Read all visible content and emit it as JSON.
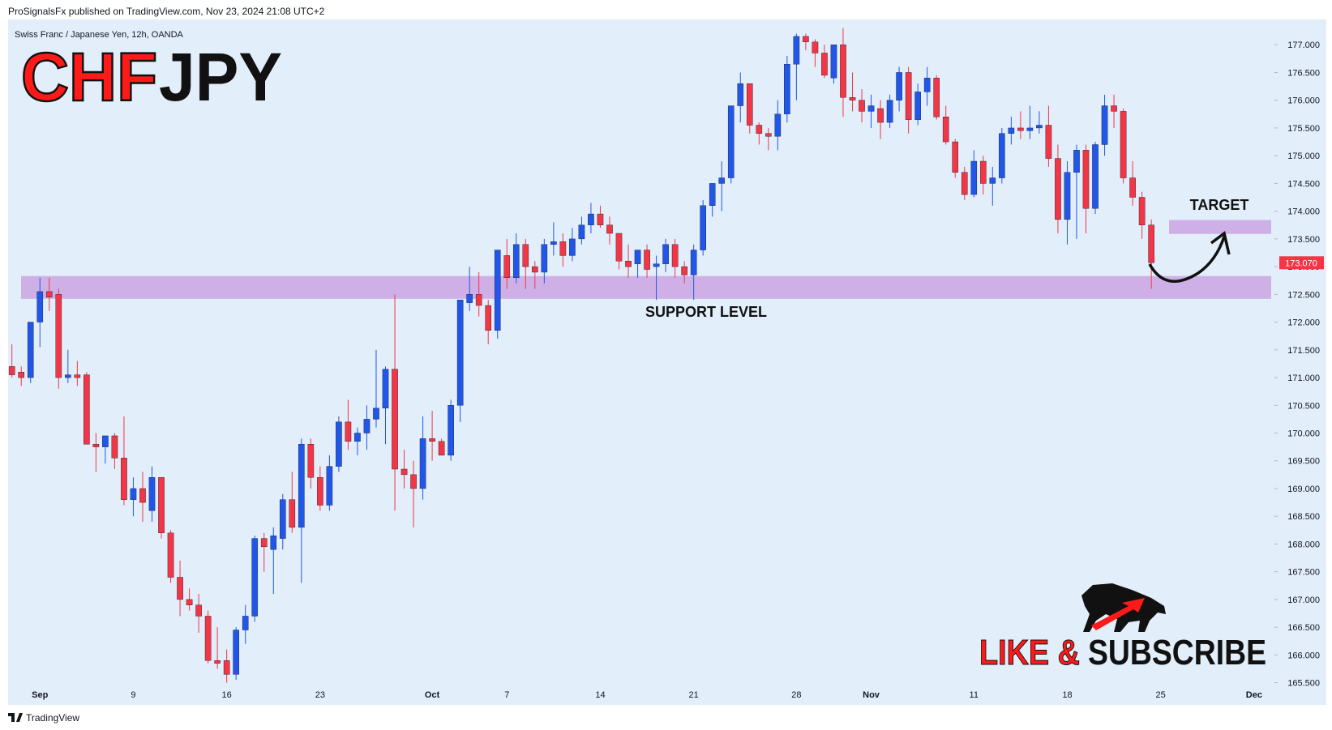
{
  "header": {
    "publisher": "ProSignalsFx published on TradingView.com, Nov 23, 2024 21:08 UTC+2",
    "footer": "TradingView"
  },
  "branding": {
    "title_left": "CHF",
    "title_right": "JPY",
    "cta_left": "LIKE &",
    "cta_right": "SUBSCRIBE"
  },
  "chart_data": {
    "type": "candlestick",
    "subtitle": "Swiss Franc / Japanese Yen, 12h, OANDA",
    "up_color": "#2157e8",
    "down_color": "#f23645",
    "zone_color": "#cda8e3",
    "ylim": [
      165.1,
      177.5
    ],
    "yticks": [
      {
        "value": 165.5,
        "label": "165.500"
      },
      {
        "value": 166,
        "label": "166.000"
      },
      {
        "value": 166.5,
        "label": "166.500"
      },
      {
        "value": 167,
        "label": "167.000"
      },
      {
        "value": 167.5,
        "label": "167.500"
      },
      {
        "value": 168,
        "label": "168.000"
      },
      {
        "value": 168.5,
        "label": "168.500"
      },
      {
        "value": 169,
        "label": "169.000"
      },
      {
        "value": 169.5,
        "label": "169.500"
      },
      {
        "value": 170,
        "label": "170.000"
      },
      {
        "value": 170.5,
        "label": "170.500"
      },
      {
        "value": 171,
        "label": "171.000"
      },
      {
        "value": 171.5,
        "label": "171.500"
      },
      {
        "value": 172,
        "label": "172.000"
      },
      {
        "value": 172.5,
        "label": "172.500"
      },
      {
        "value": 173,
        "label": "173.000"
      },
      {
        "value": 173.5,
        "label": "173.500"
      },
      {
        "value": 174,
        "label": "174.000"
      },
      {
        "value": 174.5,
        "label": "174.500"
      },
      {
        "value": 175,
        "label": "175.000"
      },
      {
        "value": 175.5,
        "label": "175.500"
      },
      {
        "value": 176,
        "label": "176.000"
      },
      {
        "value": 176.5,
        "label": "176.500"
      },
      {
        "value": 177,
        "label": "177.000"
      }
    ],
    "categories": [
      null,
      null,
      null,
      "Sep",
      null,
      null,
      null,
      null,
      null,
      null,
      null,
      null,
      null,
      "9",
      null,
      null,
      null,
      null,
      null,
      null,
      null,
      null,
      null,
      "16",
      null,
      null,
      null,
      null,
      null,
      null,
      null,
      null,
      null,
      "23",
      null,
      null,
      null,
      null,
      null,
      null,
      null,
      null,
      null,
      null,
      null,
      "Oct",
      null,
      null,
      null,
      null,
      null,
      null,
      null,
      "7",
      null,
      null,
      null,
      null,
      null,
      null,
      null,
      null,
      null,
      "14",
      null,
      null,
      null,
      null,
      null,
      null,
      null,
      null,
      null,
      "21",
      null,
      null,
      null,
      null,
      null,
      null,
      null,
      null,
      null,
      null,
      "28",
      null,
      null,
      null,
      null,
      null,
      null,
      null,
      "Nov",
      null,
      null,
      null,
      null,
      null,
      null,
      null,
      null,
      null,
      null,
      "11",
      null,
      null,
      null,
      null,
      null,
      null,
      null,
      null,
      null,
      "18",
      null,
      null,
      null,
      null,
      null,
      null,
      null,
      null,
      null,
      "25",
      null,
      null,
      null,
      null,
      null,
      null,
      null,
      null,
      null,
      "Dec"
    ],
    "ohlc": [
      [
        171.2,
        171.6,
        171.0,
        171.05
      ],
      [
        171.1,
        171.2,
        170.85,
        171.0
      ],
      [
        171.0,
        172.0,
        170.9,
        172.0
      ],
      [
        172.0,
        172.8,
        171.55,
        172.55
      ],
      [
        172.55,
        172.8,
        172.2,
        172.45
      ],
      [
        172.5,
        172.6,
        170.8,
        171.0
      ],
      [
        171.0,
        171.5,
        170.9,
        171.05
      ],
      [
        171.05,
        171.3,
        170.85,
        171.0
      ],
      [
        171.05,
        171.1,
        169.8,
        169.8
      ],
      [
        169.8,
        170.0,
        169.3,
        169.75
      ],
      [
        169.75,
        169.95,
        169.45,
        169.95
      ],
      [
        169.95,
        170.0,
        169.35,
        169.55
      ],
      [
        169.55,
        170.3,
        168.7,
        168.8
      ],
      [
        168.8,
        169.2,
        168.5,
        169.0
      ],
      [
        169.0,
        169.3,
        168.4,
        168.75
      ],
      [
        168.6,
        169.4,
        168.4,
        169.2
      ],
      [
        169.2,
        169.2,
        168.1,
        168.2
      ],
      [
        168.2,
        168.25,
        167.3,
        167.4
      ],
      [
        167.4,
        167.7,
        166.7,
        167.0
      ],
      [
        167.0,
        167.2,
        166.8,
        166.9
      ],
      [
        166.9,
        167.1,
        166.4,
        166.7
      ],
      [
        166.7,
        166.8,
        165.85,
        165.9
      ],
      [
        165.9,
        166.5,
        165.75,
        165.85
      ],
      [
        165.9,
        166.1,
        165.5,
        165.65
      ],
      [
        165.65,
        166.5,
        165.55,
        166.45
      ],
      [
        166.45,
        166.9,
        166.2,
        166.7
      ],
      [
        166.7,
        168.15,
        166.6,
        168.1
      ],
      [
        168.1,
        168.2,
        167.5,
        167.95
      ],
      [
        167.9,
        168.3,
        167.1,
        168.15
      ],
      [
        168.1,
        168.9,
        167.9,
        168.8
      ],
      [
        168.8,
        169.3,
        168.2,
        168.3
      ],
      [
        168.3,
        169.9,
        167.3,
        169.8
      ],
      [
        169.8,
        169.9,
        169.0,
        169.2
      ],
      [
        169.2,
        169.4,
        168.6,
        168.7
      ],
      [
        168.7,
        169.6,
        168.6,
        169.4
      ],
      [
        169.4,
        170.3,
        169.3,
        170.2
      ],
      [
        170.2,
        170.6,
        169.7,
        169.85
      ],
      [
        169.85,
        170.1,
        169.6,
        170.0
      ],
      [
        170.0,
        170.5,
        169.7,
        170.25
      ],
      [
        170.25,
        171.5,
        170.1,
        170.45
      ],
      [
        170.45,
        171.2,
        169.8,
        171.15
      ],
      [
        171.15,
        172.5,
        168.6,
        169.35
      ],
      [
        169.35,
        169.7,
        169.0,
        169.25
      ],
      [
        169.25,
        169.5,
        168.3,
        169.0
      ],
      [
        169.0,
        170.3,
        168.8,
        169.9
      ],
      [
        169.9,
        170.4,
        169.5,
        169.85
      ],
      [
        169.85,
        169.9,
        169.6,
        169.6
      ],
      [
        169.6,
        170.6,
        169.5,
        170.5
      ],
      [
        170.5,
        172.4,
        170.2,
        172.4
      ],
      [
        172.35,
        173.0,
        172.2,
        172.5
      ],
      [
        172.5,
        172.9,
        172.1,
        172.3
      ],
      [
        172.3,
        172.4,
        171.6,
        171.85
      ],
      [
        171.85,
        173.3,
        171.7,
        173.3
      ],
      [
        173.2,
        173.5,
        172.6,
        172.8
      ],
      [
        172.8,
        173.6,
        172.7,
        173.4
      ],
      [
        173.4,
        173.5,
        172.6,
        173.0
      ],
      [
        173.0,
        173.1,
        172.6,
        172.9
      ],
      [
        172.9,
        173.5,
        172.7,
        173.4
      ],
      [
        173.4,
        173.8,
        173.2,
        173.45
      ],
      [
        173.45,
        173.6,
        173.0,
        173.2
      ],
      [
        173.2,
        173.7,
        173.1,
        173.5
      ],
      [
        173.5,
        173.9,
        173.4,
        173.75
      ],
      [
        173.75,
        174.15,
        173.6,
        173.95
      ],
      [
        173.95,
        174.1,
        173.7,
        173.75
      ],
      [
        173.75,
        173.9,
        173.4,
        173.6
      ],
      [
        173.6,
        173.6,
        172.95,
        173.1
      ],
      [
        173.1,
        173.4,
        172.8,
        173.0
      ],
      [
        173.05,
        173.3,
        172.8,
        173.3
      ],
      [
        173.3,
        173.4,
        172.8,
        172.95
      ],
      [
        173.0,
        173.2,
        172.4,
        173.05
      ],
      [
        173.05,
        173.5,
        172.9,
        173.4
      ],
      [
        173.4,
        173.5,
        172.8,
        173.0
      ],
      [
        173.0,
        173.1,
        172.7,
        172.85
      ],
      [
        172.85,
        173.4,
        172.4,
        173.3
      ],
      [
        173.3,
        174.2,
        173.2,
        174.1
      ],
      [
        174.1,
        174.5,
        173.9,
        174.5
      ],
      [
        174.5,
        174.9,
        174.0,
        174.6
      ],
      [
        174.6,
        175.9,
        174.5,
        175.9
      ],
      [
        175.9,
        176.5,
        175.6,
        176.3
      ],
      [
        176.3,
        176.3,
        175.4,
        175.55
      ],
      [
        175.55,
        175.6,
        175.2,
        175.4
      ],
      [
        175.4,
        175.5,
        175.1,
        175.35
      ],
      [
        175.35,
        176.0,
        175.1,
        175.75
      ],
      [
        175.75,
        176.8,
        175.6,
        176.65
      ],
      [
        176.65,
        177.2,
        176.0,
        177.15
      ],
      [
        177.15,
        177.2,
        176.9,
        177.05
      ],
      [
        177.05,
        177.1,
        176.6,
        176.85
      ],
      [
        176.85,
        177.0,
        176.4,
        176.45
      ],
      [
        176.4,
        177.0,
        176.3,
        177.0
      ],
      [
        177.0,
        177.3,
        175.7,
        176.05
      ],
      [
        176.05,
        176.5,
        175.8,
        176.0
      ],
      [
        176.0,
        176.2,
        175.6,
        175.8
      ],
      [
        175.8,
        176.1,
        175.5,
        175.9
      ],
      [
        175.85,
        176.0,
        175.3,
        175.6
      ],
      [
        175.6,
        176.1,
        175.5,
        176.0
      ],
      [
        176.0,
        176.6,
        175.8,
        176.5
      ],
      [
        176.5,
        176.6,
        175.4,
        175.65
      ],
      [
        175.65,
        176.3,
        175.55,
        176.15
      ],
      [
        176.15,
        176.6,
        175.9,
        176.4
      ],
      [
        176.4,
        176.45,
        175.65,
        175.7
      ],
      [
        175.7,
        175.9,
        175.2,
        175.25
      ],
      [
        175.25,
        175.3,
        174.6,
        174.7
      ],
      [
        174.7,
        174.8,
        174.2,
        174.3
      ],
      [
        174.3,
        175.1,
        174.25,
        174.9
      ],
      [
        174.9,
        175.0,
        174.3,
        174.5
      ],
      [
        174.5,
        174.8,
        174.1,
        174.6
      ],
      [
        174.6,
        175.5,
        174.5,
        175.4
      ],
      [
        175.4,
        175.7,
        175.2,
        175.5
      ],
      [
        175.5,
        175.8,
        175.3,
        175.45
      ],
      [
        175.45,
        175.9,
        175.3,
        175.5
      ],
      [
        175.5,
        175.8,
        175.4,
        175.55
      ],
      [
        175.55,
        175.9,
        174.8,
        174.95
      ],
      [
        174.95,
        175.2,
        173.6,
        173.85
      ],
      [
        173.85,
        174.9,
        173.4,
        174.7
      ],
      [
        174.7,
        175.2,
        173.5,
        175.1
      ],
      [
        175.1,
        175.2,
        173.6,
        174.05
      ],
      [
        174.05,
        175.25,
        173.95,
        175.2
      ],
      [
        175.2,
        176.1,
        175.0,
        175.9
      ],
      [
        175.9,
        176.1,
        175.5,
        175.8
      ],
      [
        175.8,
        175.85,
        174.5,
        174.6
      ],
      [
        174.6,
        174.9,
        174.1,
        174.25
      ],
      [
        174.25,
        174.35,
        173.5,
        173.75
      ],
      [
        173.75,
        173.85,
        172.6,
        173.07
      ],
      null,
      null,
      null,
      null,
      null,
      null,
      null,
      null,
      null,
      null,
      null
    ],
    "zones": [
      {
        "label": "SUPPORT LEVEL",
        "range": [
          172.42,
          172.83
        ]
      },
      {
        "label": "TARGET",
        "range": [
          173.59,
          173.84
        ]
      }
    ],
    "last_price": {
      "value": 173.07,
      "label": "173.070"
    }
  }
}
